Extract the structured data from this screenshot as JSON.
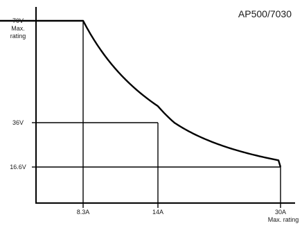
{
  "chart_data": {
    "type": "line",
    "title": "AP500/7030",
    "xlabel": "",
    "ylabel": "",
    "xlim": [
      0,
      30
    ],
    "ylim": [
      0,
      70
    ],
    "grid": false,
    "series": [
      {
        "x": [
          0,
          8.3,
          14,
          30
        ],
        "y": [
          70,
          70,
          36,
          16.6
        ],
        "curve": "constant-power"
      }
    ],
    "y_ticks": [
      {
        "value": 70,
        "lines": [
          "70V",
          "Max.",
          "rating"
        ]
      },
      {
        "value": 36,
        "lines": [
          "36V"
        ]
      },
      {
        "value": 16.6,
        "lines": [
          "16.6V"
        ]
      }
    ],
    "x_ticks": [
      {
        "value": 8.3,
        "lines": [
          "8.3A"
        ]
      },
      {
        "value": 14,
        "lines": [
          "14A"
        ]
      },
      {
        "value": 30,
        "lines": [
          "30A",
          "Max. rating"
        ]
      }
    ],
    "reference_lines": [
      {
        "x": 8.3,
        "y": 70
      },
      {
        "x": 14,
        "y": 36
      },
      {
        "x": 30,
        "y": 16.6
      }
    ],
    "colors": {
      "line": "#000000",
      "text": "#1a1a1a",
      "background": "#ffffff"
    }
  }
}
